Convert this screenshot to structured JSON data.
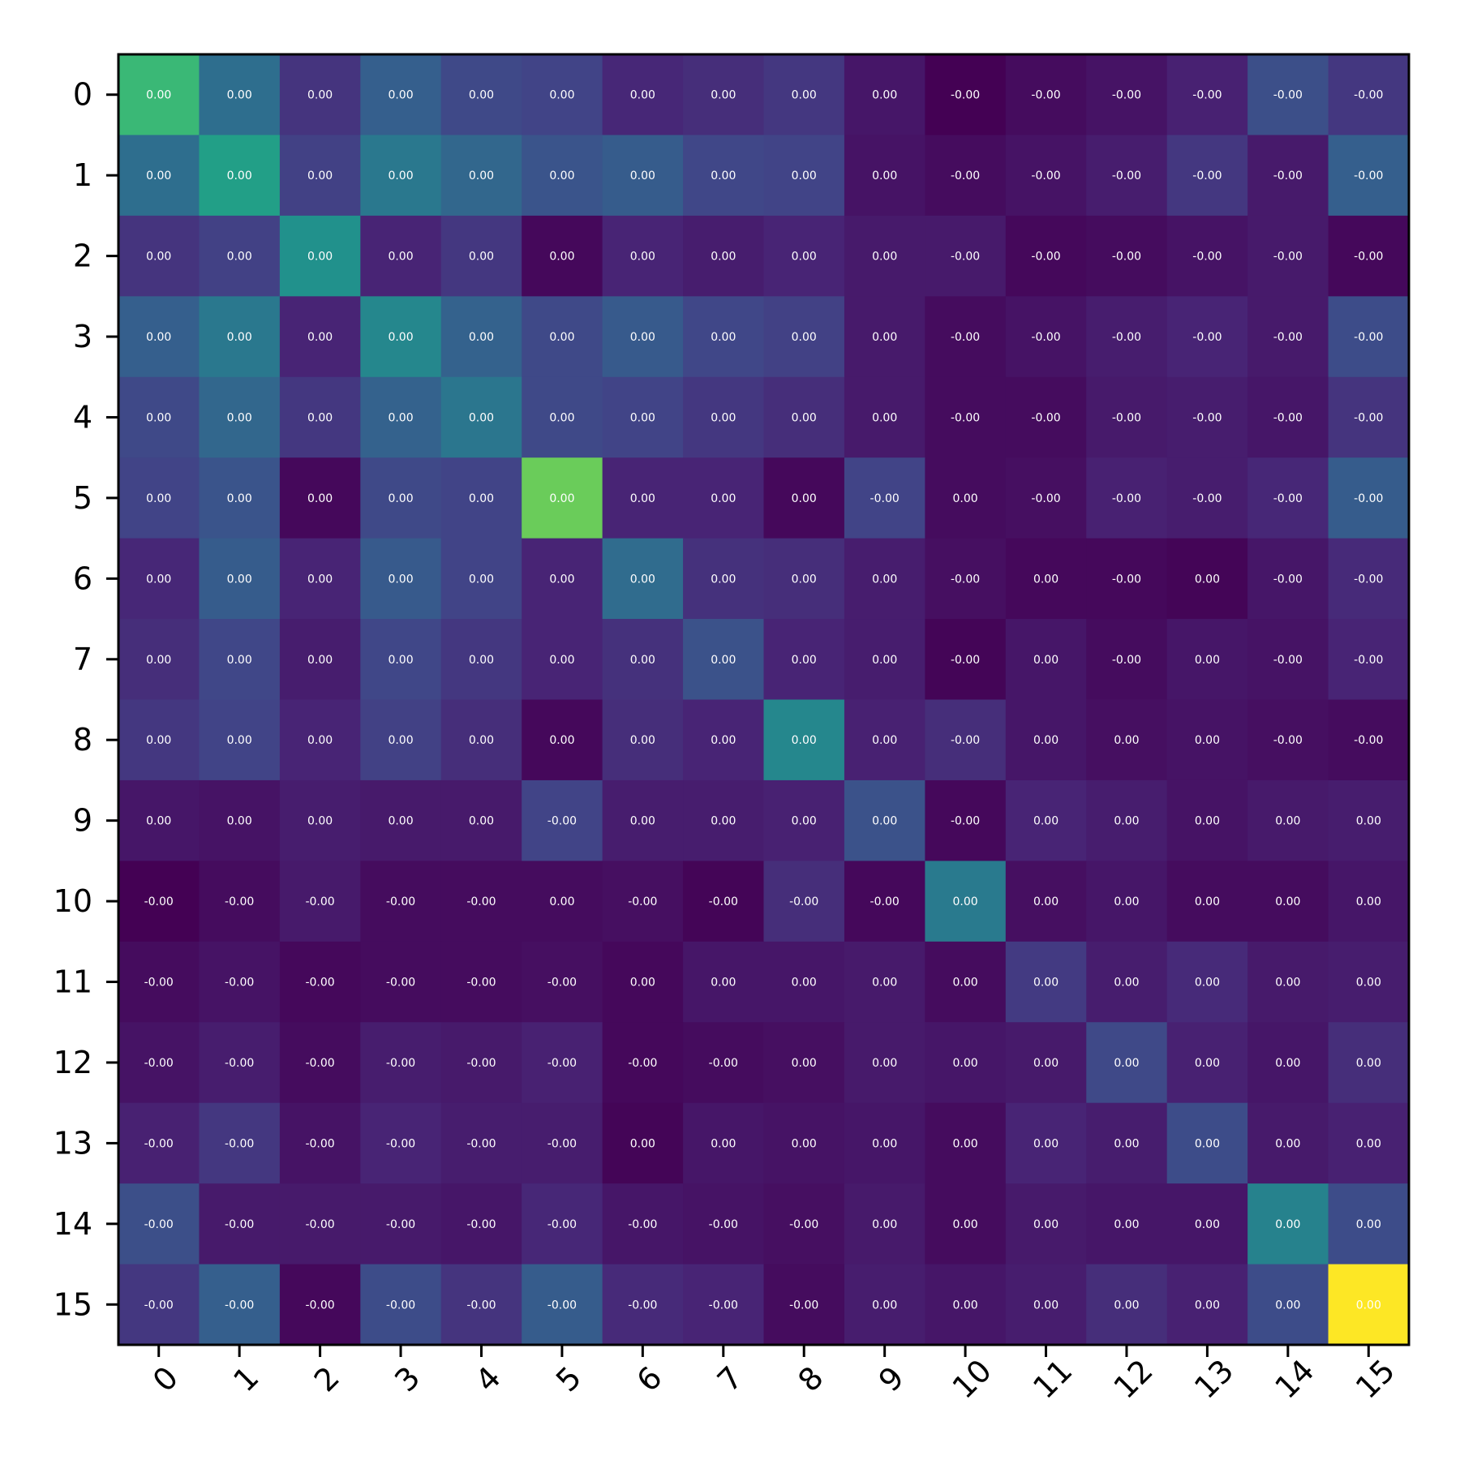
{
  "chart_data": {
    "type": "heatmap",
    "title": "",
    "xlabel": "",
    "ylabel": "",
    "x_categories": [
      "0",
      "1",
      "2",
      "3",
      "4",
      "5",
      "6",
      "7",
      "8",
      "9",
      "10",
      "11",
      "12",
      "13",
      "14",
      "15"
    ],
    "y_categories": [
      "0",
      "1",
      "2",
      "3",
      "4",
      "5",
      "6",
      "7",
      "8",
      "9",
      "10",
      "11",
      "12",
      "13",
      "14",
      "15"
    ],
    "colormap": "viridis",
    "grid": false,
    "cell_text": [
      [
        "0.00",
        "0.00",
        "0.00",
        "0.00",
        "0.00",
        "0.00",
        "0.00",
        "0.00",
        "0.00",
        "0.00",
        "-0.00",
        "-0.00",
        "-0.00",
        "-0.00",
        "-0.00",
        "-0.00"
      ],
      [
        "0.00",
        "0.00",
        "0.00",
        "0.00",
        "0.00",
        "0.00",
        "0.00",
        "0.00",
        "0.00",
        "0.00",
        "-0.00",
        "-0.00",
        "-0.00",
        "-0.00",
        "-0.00",
        "-0.00"
      ],
      [
        "0.00",
        "0.00",
        "0.00",
        "0.00",
        "0.00",
        "0.00",
        "0.00",
        "0.00",
        "0.00",
        "0.00",
        "-0.00",
        "-0.00",
        "-0.00",
        "-0.00",
        "-0.00",
        "-0.00"
      ],
      [
        "0.00",
        "0.00",
        "0.00",
        "0.00",
        "0.00",
        "0.00",
        "0.00",
        "0.00",
        "0.00",
        "0.00",
        "-0.00",
        "-0.00",
        "-0.00",
        "-0.00",
        "-0.00",
        "-0.00"
      ],
      [
        "0.00",
        "0.00",
        "0.00",
        "0.00",
        "0.00",
        "0.00",
        "0.00",
        "0.00",
        "0.00",
        "0.00",
        "-0.00",
        "-0.00",
        "-0.00",
        "-0.00",
        "-0.00",
        "-0.00"
      ],
      [
        "0.00",
        "0.00",
        "0.00",
        "0.00",
        "0.00",
        "0.00",
        "0.00",
        "0.00",
        "0.00",
        "-0.00",
        "0.00",
        "-0.00",
        "-0.00",
        "-0.00",
        "-0.00",
        "-0.00"
      ],
      [
        "0.00",
        "0.00",
        "0.00",
        "0.00",
        "0.00",
        "0.00",
        "0.00",
        "0.00",
        "0.00",
        "0.00",
        "-0.00",
        "0.00",
        "-0.00",
        "0.00",
        "-0.00",
        "-0.00"
      ],
      [
        "0.00",
        "0.00",
        "0.00",
        "0.00",
        "0.00",
        "0.00",
        "0.00",
        "0.00",
        "0.00",
        "0.00",
        "-0.00",
        "0.00",
        "-0.00",
        "0.00",
        "-0.00",
        "-0.00"
      ],
      [
        "0.00",
        "0.00",
        "0.00",
        "0.00",
        "0.00",
        "0.00",
        "0.00",
        "0.00",
        "0.00",
        "0.00",
        "-0.00",
        "0.00",
        "0.00",
        "0.00",
        "-0.00",
        "-0.00"
      ],
      [
        "0.00",
        "0.00",
        "0.00",
        "0.00",
        "0.00",
        "-0.00",
        "0.00",
        "0.00",
        "0.00",
        "0.00",
        "-0.00",
        "0.00",
        "0.00",
        "0.00",
        "0.00",
        "0.00"
      ],
      [
        "-0.00",
        "-0.00",
        "-0.00",
        "-0.00",
        "-0.00",
        "0.00",
        "-0.00",
        "-0.00",
        "-0.00",
        "-0.00",
        "0.00",
        "0.00",
        "0.00",
        "0.00",
        "0.00",
        "0.00"
      ],
      [
        "-0.00",
        "-0.00",
        "-0.00",
        "-0.00",
        "-0.00",
        "-0.00",
        "0.00",
        "0.00",
        "0.00",
        "0.00",
        "0.00",
        "0.00",
        "0.00",
        "0.00",
        "0.00",
        "0.00"
      ],
      [
        "-0.00",
        "-0.00",
        "-0.00",
        "-0.00",
        "-0.00",
        "-0.00",
        "-0.00",
        "-0.00",
        "0.00",
        "0.00",
        "0.00",
        "0.00",
        "0.00",
        "0.00",
        "0.00",
        "0.00"
      ],
      [
        "-0.00",
        "-0.00",
        "-0.00",
        "-0.00",
        "-0.00",
        "-0.00",
        "0.00",
        "0.00",
        "0.00",
        "0.00",
        "0.00",
        "0.00",
        "0.00",
        "0.00",
        "0.00",
        "0.00"
      ],
      [
        "-0.00",
        "-0.00",
        "-0.00",
        "-0.00",
        "-0.00",
        "-0.00",
        "-0.00",
        "-0.00",
        "-0.00",
        "0.00",
        "0.00",
        "0.00",
        "0.00",
        "0.00",
        "0.00",
        "0.00"
      ],
      [
        "-0.00",
        "-0.00",
        "-0.00",
        "-0.00",
        "-0.00",
        "-0.00",
        "-0.00",
        "-0.00",
        "-0.00",
        "0.00",
        "0.00",
        "0.00",
        "0.00",
        "0.00",
        "0.00",
        "0.00"
      ]
    ],
    "color_intensity": [
      [
        0.67,
        0.36,
        0.15,
        0.3,
        0.22,
        0.2,
        0.11,
        0.13,
        0.16,
        0.06,
        0.0,
        0.03,
        0.05,
        0.09,
        0.24,
        0.16
      ],
      [
        0.36,
        0.56,
        0.19,
        0.4,
        0.33,
        0.26,
        0.29,
        0.21,
        0.2,
        0.05,
        0.03,
        0.05,
        0.08,
        0.16,
        0.07,
        0.3
      ],
      [
        0.15,
        0.19,
        0.5,
        0.1,
        0.16,
        0.02,
        0.1,
        0.08,
        0.1,
        0.07,
        0.07,
        0.02,
        0.03,
        0.05,
        0.07,
        0.02
      ],
      [
        0.3,
        0.4,
        0.1,
        0.46,
        0.31,
        0.22,
        0.28,
        0.21,
        0.19,
        0.07,
        0.03,
        0.05,
        0.08,
        0.1,
        0.07,
        0.23
      ],
      [
        0.22,
        0.33,
        0.16,
        0.31,
        0.39,
        0.22,
        0.2,
        0.16,
        0.13,
        0.07,
        0.03,
        0.03,
        0.07,
        0.08,
        0.06,
        0.15
      ],
      [
        0.2,
        0.26,
        0.02,
        0.22,
        0.2,
        0.77,
        0.1,
        0.1,
        0.02,
        0.2,
        0.03,
        0.04,
        0.09,
        0.08,
        0.11,
        0.29
      ],
      [
        0.11,
        0.29,
        0.1,
        0.28,
        0.2,
        0.1,
        0.35,
        0.14,
        0.13,
        0.08,
        0.04,
        0.02,
        0.02,
        0.01,
        0.06,
        0.12
      ],
      [
        0.13,
        0.21,
        0.08,
        0.21,
        0.16,
        0.1,
        0.14,
        0.25,
        0.1,
        0.08,
        0.01,
        0.06,
        0.03,
        0.06,
        0.05,
        0.1
      ],
      [
        0.16,
        0.2,
        0.1,
        0.19,
        0.13,
        0.02,
        0.13,
        0.1,
        0.46,
        0.09,
        0.13,
        0.06,
        0.04,
        0.05,
        0.04,
        0.03
      ],
      [
        0.06,
        0.05,
        0.08,
        0.07,
        0.07,
        0.2,
        0.08,
        0.08,
        0.09,
        0.25,
        0.02,
        0.1,
        0.08,
        0.05,
        0.07,
        0.08
      ],
      [
        0.0,
        0.03,
        0.07,
        0.03,
        0.03,
        0.03,
        0.04,
        0.01,
        0.13,
        0.02,
        0.41,
        0.04,
        0.06,
        0.03,
        0.03,
        0.06
      ],
      [
        0.03,
        0.05,
        0.02,
        0.03,
        0.03,
        0.04,
        0.02,
        0.06,
        0.06,
        0.07,
        0.03,
        0.17,
        0.08,
        0.12,
        0.07,
        0.08
      ],
      [
        0.05,
        0.08,
        0.03,
        0.08,
        0.07,
        0.09,
        0.02,
        0.03,
        0.04,
        0.07,
        0.06,
        0.07,
        0.22,
        0.09,
        0.06,
        0.13
      ],
      [
        0.09,
        0.16,
        0.05,
        0.1,
        0.08,
        0.08,
        0.01,
        0.06,
        0.05,
        0.06,
        0.03,
        0.1,
        0.08,
        0.23,
        0.07,
        0.09
      ],
      [
        0.24,
        0.07,
        0.07,
        0.07,
        0.06,
        0.11,
        0.06,
        0.05,
        0.04,
        0.07,
        0.03,
        0.07,
        0.06,
        0.06,
        0.44,
        0.23
      ],
      [
        0.16,
        0.3,
        0.02,
        0.23,
        0.15,
        0.29,
        0.12,
        0.1,
        0.03,
        0.08,
        0.06,
        0.08,
        0.13,
        0.09,
        0.23,
        1.0
      ]
    ],
    "tick_label_rotation_x_deg": -45
  }
}
